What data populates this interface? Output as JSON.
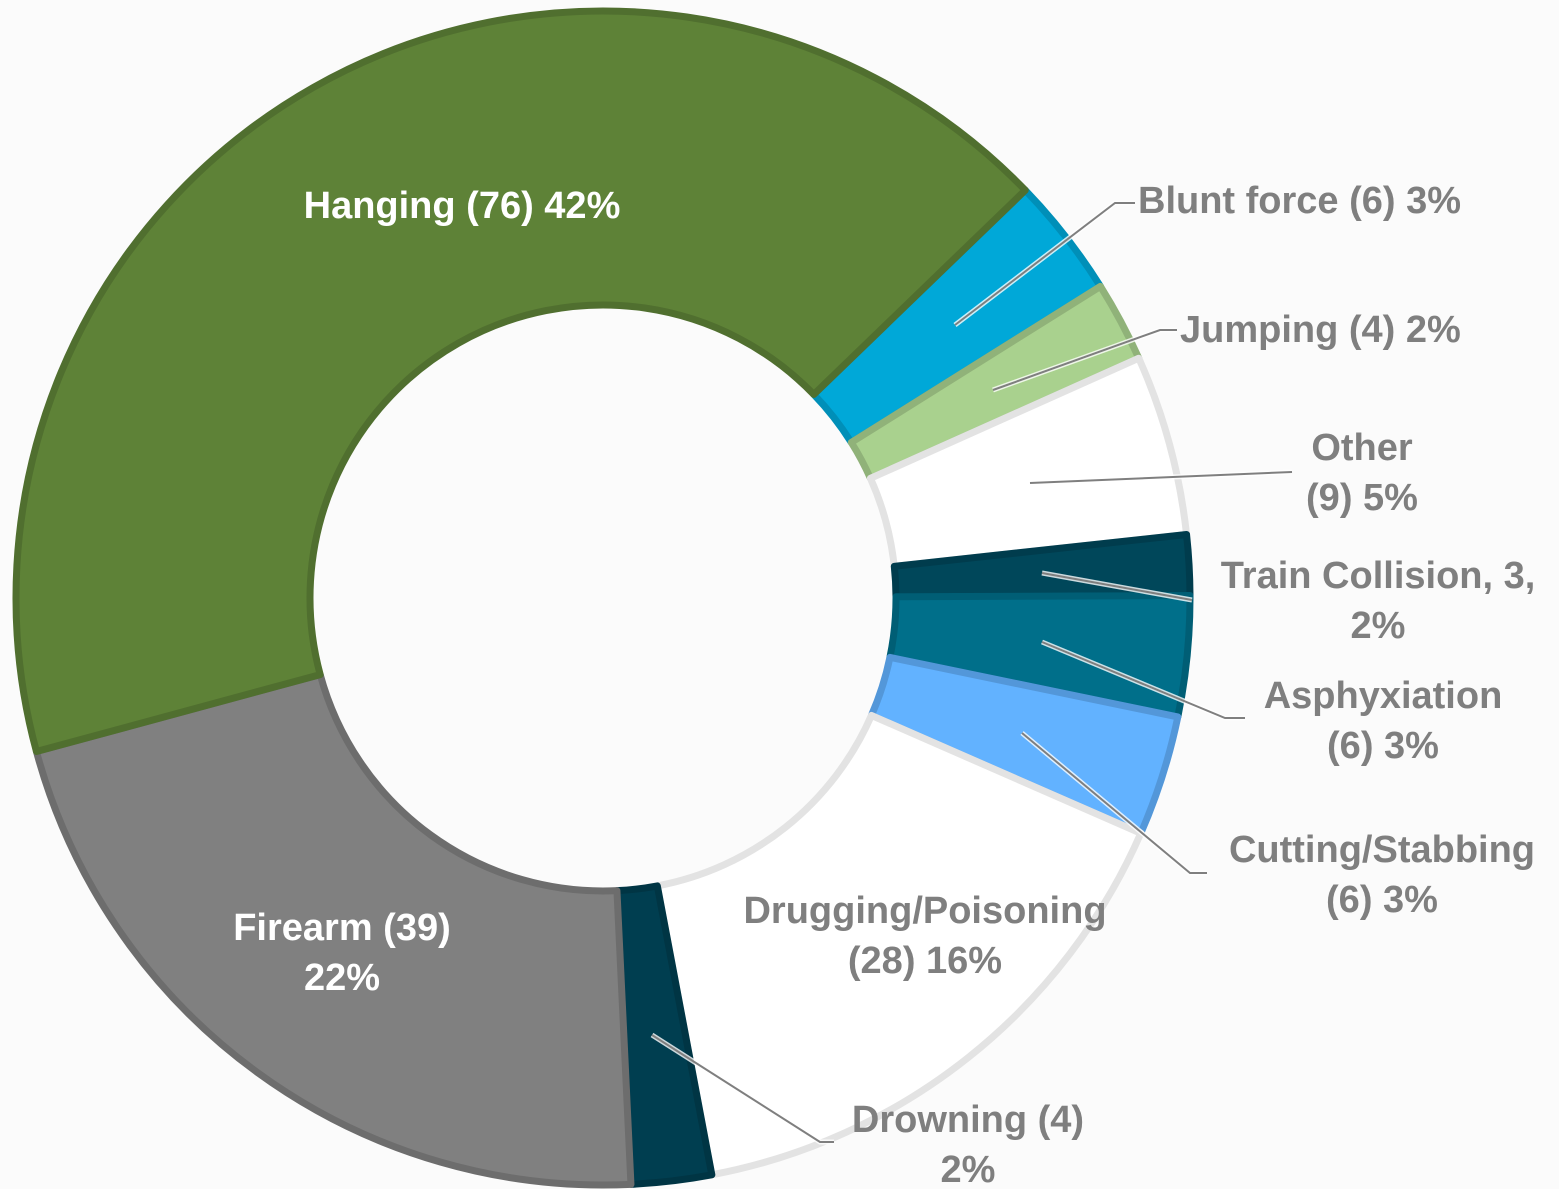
{
  "chart_data": {
    "type": "donut",
    "categories": [
      "Blunt force (6) 3%",
      "Jumping (4) 2%",
      "Other\n(9) 5%",
      "Train Collision, 3,\n2%",
      "Asphyxiation\n(6) 3%",
      "Cutting/Stabbing\n(6) 3%",
      "Drugging/Poisoning\n(28) 16%",
      "Drowning (4)\n2%",
      "Firearm (39)\n22%",
      "Hanging (76) 42%"
    ],
    "values": [
      6,
      4,
      9,
      3,
      6,
      6,
      28,
      4,
      39,
      76
    ],
    "colors": [
      "#00a8d8",
      "#a9d18e",
      "#ffffff",
      "#00475a",
      "#006f8a",
      "#62b2ff",
      "#ffffff",
      "#003e50",
      "#808080",
      "#5e8237"
    ]
  }
}
